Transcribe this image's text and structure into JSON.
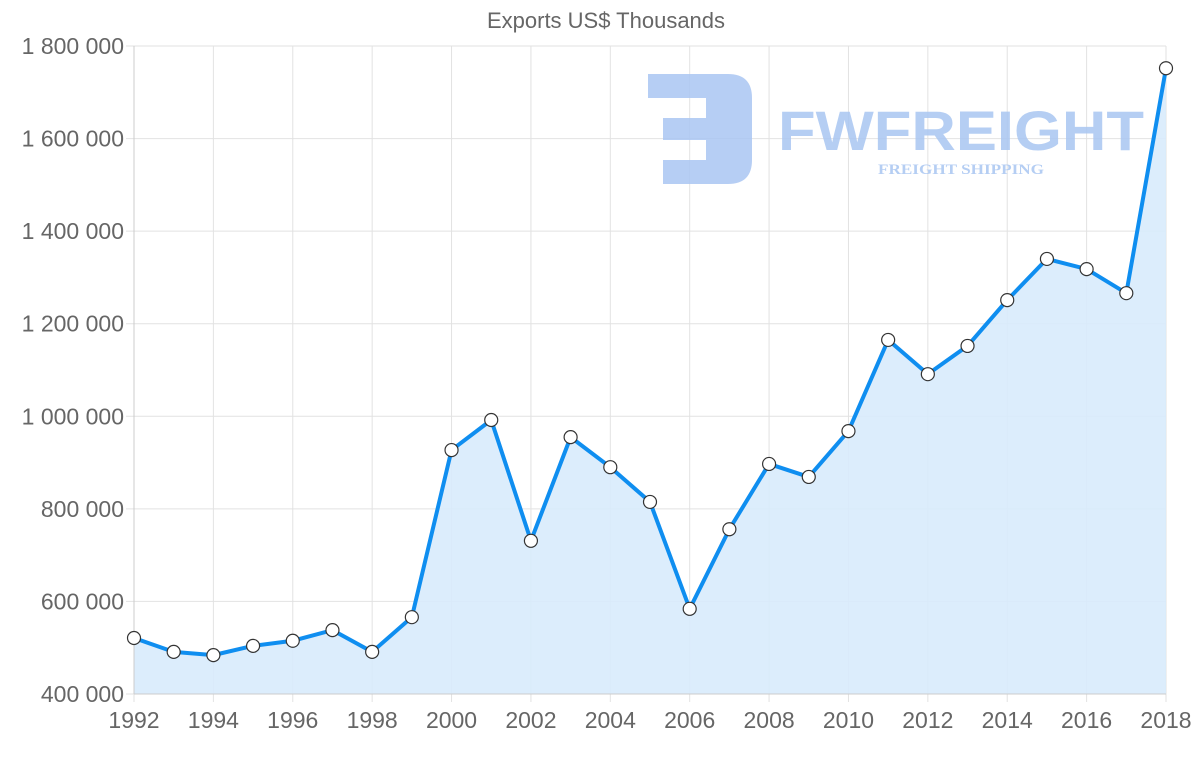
{
  "chart_data": {
    "type": "area",
    "title": "Exports US$ Thousands",
    "xlabel": "",
    "ylabel": "",
    "ylim": [
      400000,
      1800000
    ],
    "xlim": [
      1992,
      2018
    ],
    "grid": true,
    "legend": null,
    "y_ticks": [
      "400 000",
      "600 000",
      "800 000",
      "1 000 000",
      "1 200 000",
      "1 400 000",
      "1 600 000",
      "1 800 000"
    ],
    "y_tick_values": [
      400000,
      600000,
      800000,
      1000000,
      1200000,
      1400000,
      1600000,
      1800000
    ],
    "x_ticks": [
      "1992",
      "1994",
      "1996",
      "1998",
      "2000",
      "2002",
      "2004",
      "2006",
      "2008",
      "2010",
      "2012",
      "2014",
      "2016",
      "2018"
    ],
    "x": [
      1992,
      1993,
      1994,
      1995,
      1996,
      1997,
      1998,
      1999,
      2000,
      2001,
      2002,
      2003,
      2004,
      2005,
      2006,
      2007,
      2008,
      2009,
      2010,
      2011,
      2012,
      2013,
      2014,
      2015,
      2016,
      2017,
      2018
    ],
    "series": [
      {
        "name": "Exports US$ Thousands",
        "values": [
          521000,
          491000,
          484000,
          504000,
          515000,
          538000,
          491000,
          566000,
          927000,
          992000,
          731000,
          955000,
          890000,
          815000,
          584000,
          756000,
          897000,
          869000,
          968000,
          1165000,
          1091000,
          1152000,
          1251000,
          1340000,
          1318000,
          1266000,
          1752000
        ],
        "line_color": "#0f8ef0",
        "fill_color": "#d8ebfc",
        "marker_fill": "#ffffff",
        "marker_stroke": "#333333"
      }
    ],
    "watermark": {
      "brand": "FWFREIGHT",
      "tagline": "FREIGHT SHIPPING",
      "color": "#a9c6f2"
    }
  },
  "colors": {
    "grid": "#e2e2e2",
    "axis": "#cccccc",
    "tick_text": "#666666"
  }
}
